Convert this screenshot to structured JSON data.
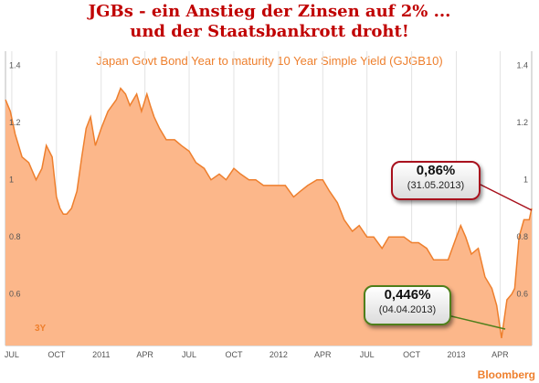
{
  "headline": {
    "line1": "JGBs - ein Anstieg der Zinsen auf 2% ...",
    "line2": "und der Staatsbankrott droht!"
  },
  "subtitle": "Japan Govt Bond Year to maturity 10 Year Simple Yield (GJGB10)",
  "range_label": "3Y",
  "brand": "Bloomberg",
  "colors": {
    "area": "#fcb78a",
    "line": "#ee7f2d",
    "headline": "#c00000",
    "red_callout": "#a8111d",
    "green_callout": "#4f7f1b"
  },
  "callouts": {
    "high": {
      "value": "0,86%",
      "date": "(31.05.2013)"
    },
    "low": {
      "value": "0,446%",
      "date": "(04.04.2013)"
    }
  },
  "chart_data": {
    "type": "area",
    "title": "Japan Govt Bond Year to maturity 10 Year Simple Yield (GJGB10)",
    "ylim": [
      0.42,
      1.45
    ],
    "xlim": [
      "2010-06-18",
      "2013-06-05"
    ],
    "y_ticks": [
      "1.4",
      "1.2",
      "1",
      "0.8",
      "0.6"
    ],
    "y_tick_values": [
      1.4,
      1.2,
      1.0,
      0.8,
      0.6
    ],
    "x_ticks": [
      {
        "label": "JUL",
        "date": "2010-07-01"
      },
      {
        "label": "OCT",
        "date": "2010-10-01"
      },
      {
        "label": "2011",
        "date": "2011-01-01"
      },
      {
        "label": "APR",
        "date": "2011-04-01"
      },
      {
        "label": "JUL",
        "date": "2011-07-01"
      },
      {
        "label": "OCT",
        "date": "2011-10-01"
      },
      {
        "label": "2012",
        "date": "2012-01-01"
      },
      {
        "label": "APR",
        "date": "2012-04-01"
      },
      {
        "label": "JUL",
        "date": "2012-07-01"
      },
      {
        "label": "OCT",
        "date": "2012-10-01"
      },
      {
        "label": "2013",
        "date": "2013-01-01"
      },
      {
        "label": "APR",
        "date": "2013-04-01"
      }
    ],
    "grid": "vertical",
    "series": [
      {
        "dates": [
          "2010-06-18",
          "2010-06-28",
          "2010-07-08",
          "2010-07-22",
          "2010-08-05",
          "2010-08-20",
          "2010-09-01",
          "2010-09-10",
          "2010-09-22",
          "2010-10-01",
          "2010-10-08",
          "2010-10-15",
          "2010-10-22",
          "2010-11-01",
          "2010-11-12",
          "2010-11-22",
          "2010-12-01",
          "2010-12-10",
          "2010-12-20",
          "2011-01-01",
          "2011-01-15",
          "2011-02-01",
          "2011-02-10",
          "2011-02-20",
          "2011-03-01",
          "2011-03-15",
          "2011-03-25",
          "2011-04-05",
          "2011-04-12",
          "2011-04-20",
          "2011-05-01",
          "2011-05-15",
          "2011-06-01",
          "2011-06-15",
          "2011-07-01",
          "2011-07-15",
          "2011-08-01",
          "2011-08-15",
          "2011-09-01",
          "2011-09-15",
          "2011-10-01",
          "2011-10-15",
          "2011-11-01",
          "2011-11-15",
          "2011-12-01",
          "2011-12-15",
          "2012-01-01",
          "2012-01-15",
          "2012-02-01",
          "2012-02-15",
          "2012-03-01",
          "2012-03-20",
          "2012-04-01",
          "2012-04-15",
          "2012-05-01",
          "2012-05-15",
          "2012-06-01",
          "2012-06-15",
          "2012-07-01",
          "2012-07-15",
          "2012-08-01",
          "2012-08-15",
          "2012-09-01",
          "2012-09-15",
          "2012-10-01",
          "2012-10-15",
          "2012-11-01",
          "2012-11-15",
          "2012-12-01",
          "2012-12-15",
          "2013-01-01",
          "2013-01-10",
          "2013-01-20",
          "2013-02-01",
          "2013-02-15",
          "2013-03-01",
          "2013-03-15",
          "2013-03-25",
          "2013-04-04",
          "2013-04-15",
          "2013-04-25",
          "2013-05-01",
          "2013-05-10",
          "2013-05-20",
          "2013-05-31",
          "2013-06-05"
        ],
        "values": [
          1.28,
          1.24,
          1.16,
          1.08,
          1.06,
          1.0,
          1.04,
          1.12,
          1.08,
          0.94,
          0.9,
          0.88,
          0.88,
          0.9,
          0.96,
          1.08,
          1.18,
          1.22,
          1.12,
          1.18,
          1.24,
          1.28,
          1.32,
          1.3,
          1.26,
          1.3,
          1.24,
          1.3,
          1.26,
          1.22,
          1.18,
          1.14,
          1.14,
          1.12,
          1.1,
          1.06,
          1.04,
          1.0,
          1.02,
          1.0,
          1.04,
          1.02,
          1.0,
          1.0,
          0.98,
          0.98,
          0.98,
          0.98,
          0.94,
          0.96,
          0.98,
          1.0,
          1.0,
          0.96,
          0.92,
          0.86,
          0.82,
          0.84,
          0.8,
          0.8,
          0.76,
          0.8,
          0.8,
          0.8,
          0.78,
          0.78,
          0.76,
          0.72,
          0.72,
          0.72,
          0.8,
          0.84,
          0.8,
          0.74,
          0.76,
          0.66,
          0.62,
          0.56,
          0.446,
          0.58,
          0.6,
          0.62,
          0.8,
          0.86,
          0.86,
          0.9
        ]
      }
    ]
  }
}
